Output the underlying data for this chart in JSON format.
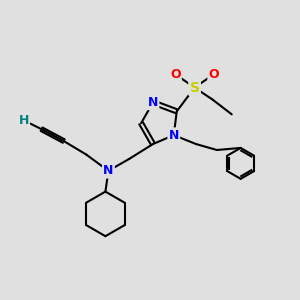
{
  "bg_color": "#e0e0e0",
  "atom_colors": {
    "C": "#000000",
    "N": "#0000ff",
    "S": "#cccc00",
    "O": "#ff0000",
    "H": "#008080"
  },
  "bond_color": "#000000",
  "bond_width": 1.5,
  "font_size_atom": 9,
  "fig_size": [
    3.0,
    3.0
  ],
  "dpi": 100
}
